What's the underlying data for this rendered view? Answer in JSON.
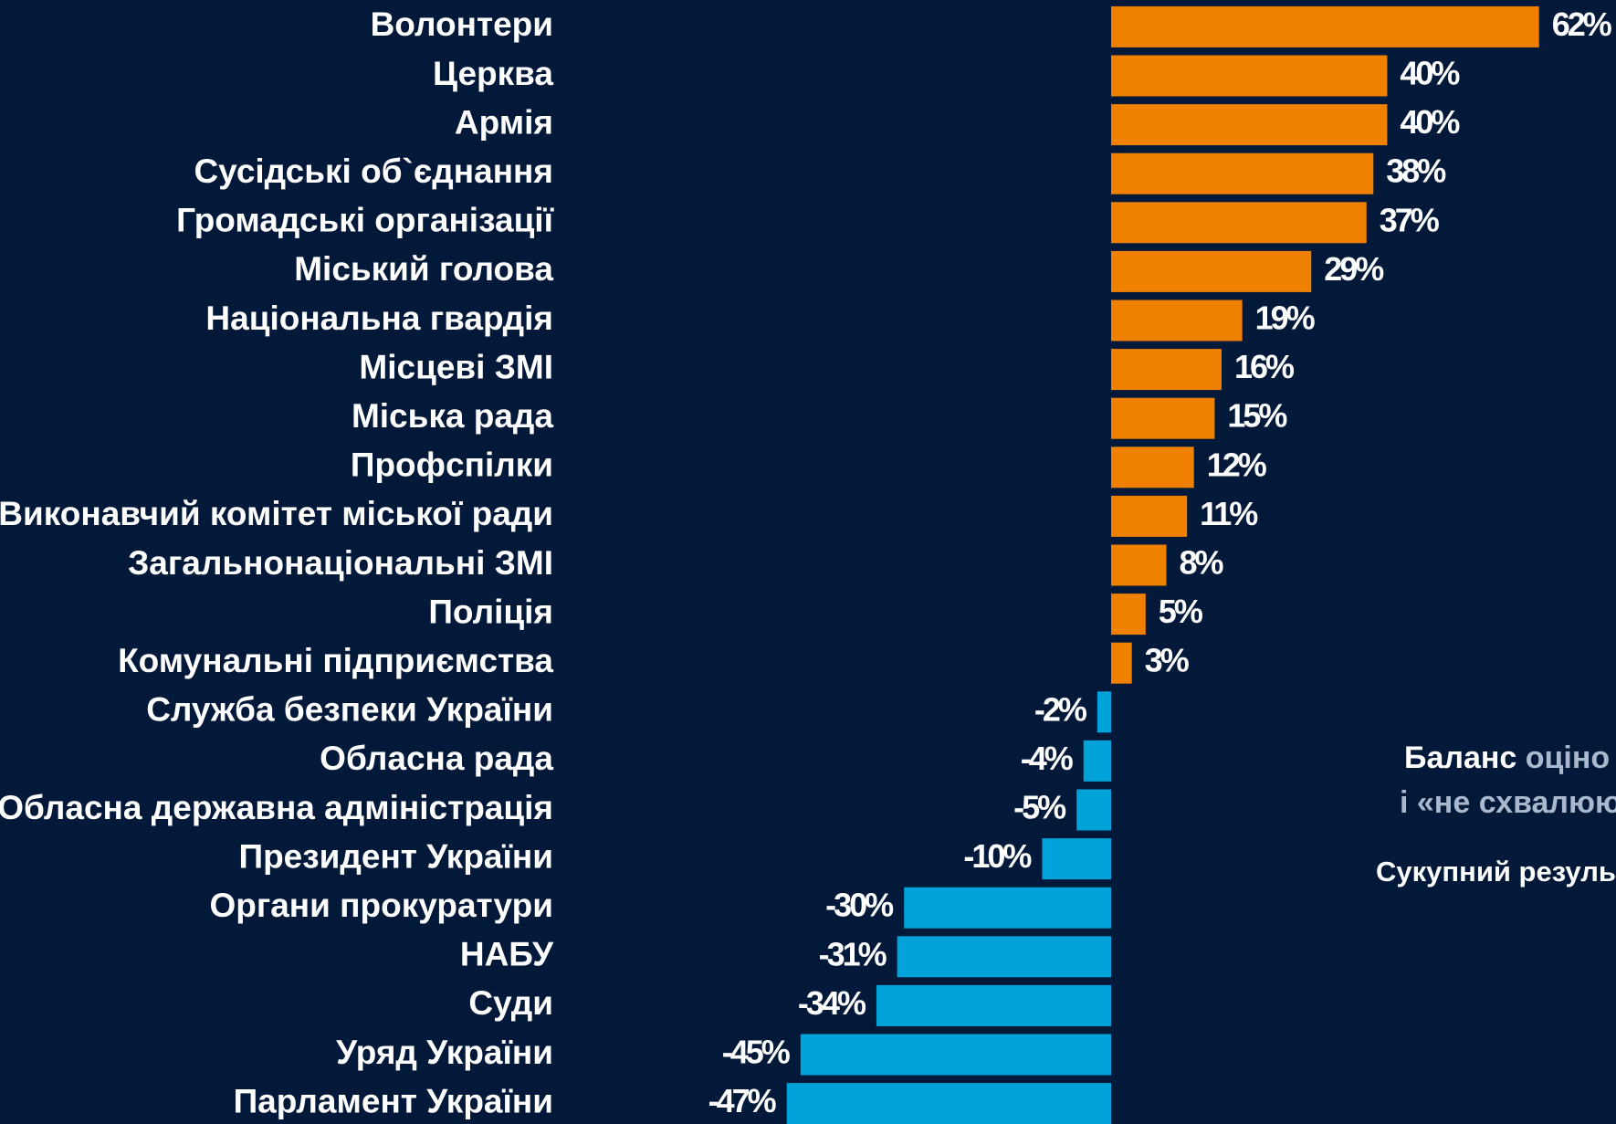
{
  "chart_data": {
    "type": "bar",
    "orientation": "horizontal",
    "categories": [
      "Волонтери",
      "Церква",
      "Армія",
      "Сусідські об`єднання",
      "Громадські організації",
      "Міський голова",
      "Національна гвардія",
      "Місцеві ЗМІ",
      "Міська рада",
      "Профспілки",
      "Виконавчий комітет міської ради",
      "Загальнонаціональні ЗМІ",
      "Поліція",
      "Комунальні підприємства",
      "Служба безпеки України",
      "Обласна рада",
      "Обласна державна адміністрація",
      "Президент України",
      "Органи прокуратури",
      "НАБУ",
      "Суди",
      "Уряд України",
      "Парламент України"
    ],
    "values": [
      62,
      40,
      40,
      38,
      37,
      29,
      19,
      16,
      15,
      12,
      11,
      8,
      5,
      3,
      -2,
      -4,
      -5,
      -10,
      -30,
      -31,
      -34,
      -45,
      -47
    ],
    "value_labels": [
      "62%",
      "40%",
      "40%",
      "38%",
      "37%",
      "29%",
      "19%",
      "16%",
      "15%",
      "12%",
      "11%",
      "8%",
      "5%",
      "3%",
      "-2%",
      "-4%",
      "-5%",
      "-10%",
      "-30%",
      "-31%",
      "-34%",
      "-45%",
      "-47%"
    ],
    "colors": {
      "positive": "#f08000",
      "negative": "#00a3d9"
    },
    "annotations": [
      {
        "parts": [
          {
            "text": "Баланс",
            "color": "#ffffff"
          },
          {
            "text": " оціно",
            "color": "#a9b8cc"
          }
        ]
      },
      {
        "parts": [
          {
            "text": "і «не схвалюю",
            "color": "#a9b8cc"
          }
        ]
      },
      {
        "parts": [
          {
            "text": "Сукупний резуль",
            "color": "#ffffff"
          }
        ]
      }
    ]
  }
}
